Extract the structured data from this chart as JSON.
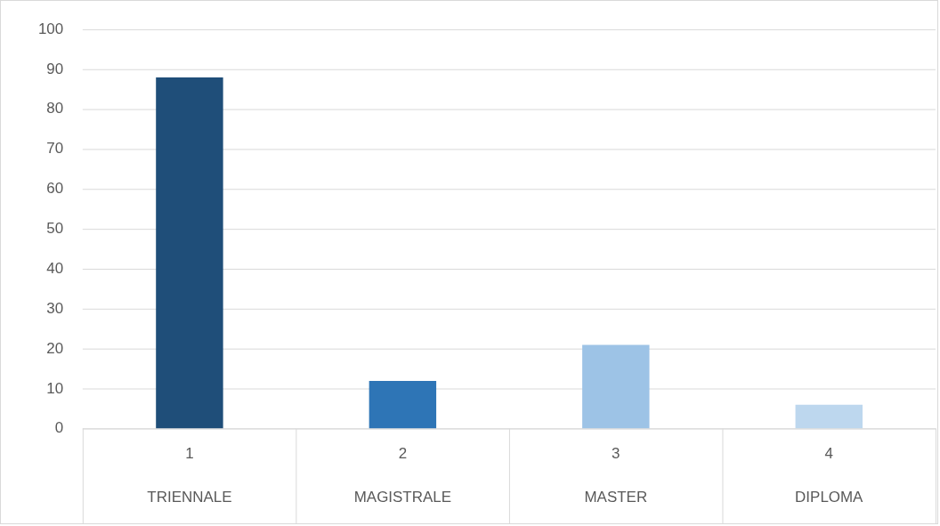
{
  "chart_data": {
    "type": "bar",
    "categories": [
      "1\nTRIENNALE",
      "2\nMAGISTRALE",
      "3\nMASTER",
      "4\nDIPLOMA"
    ],
    "values": [
      88,
      12,
      21,
      6
    ],
    "colors": [
      "#1f4e79",
      "#2e75b6",
      "#9dc3e6",
      "#bdd7ee"
    ],
    "ylim": [
      0,
      100
    ],
    "yticks": [
      0,
      10,
      20,
      30,
      40,
      50,
      60,
      70,
      80,
      90,
      100
    ],
    "grid": "y",
    "legend": false
  }
}
